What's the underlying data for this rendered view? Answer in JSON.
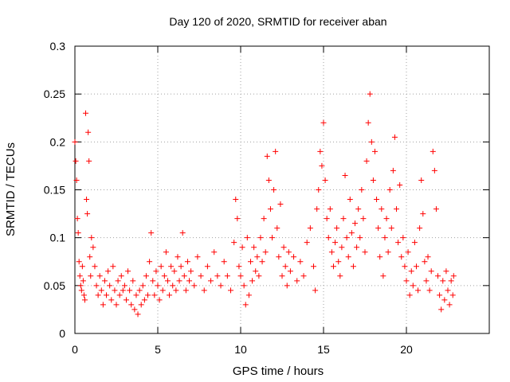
{
  "chart_data": {
    "type": "scatter",
    "title": "Day 120 of 2020, SRMTID for receiver aban",
    "xlabel": "GPS time / hours",
    "ylabel": "SRMTID / TECUs",
    "xlim": [
      0,
      25
    ],
    "ylim": [
      0,
      0.3
    ],
    "xticks": [
      0,
      5,
      10,
      15,
      20
    ],
    "xtick_labels": [
      "0",
      "5",
      "10",
      "15",
      "20"
    ],
    "yticks": [
      0,
      0.05,
      0.1,
      0.15,
      0.2,
      0.25,
      0.3
    ],
    "ytick_labels": [
      "0",
      "0.05",
      "0.1",
      "0.15",
      "0.2",
      "0.25",
      "0.3"
    ],
    "grid": true,
    "marker": "+",
    "series_color": "#ff0000",
    "series": [
      {
        "name": "SRMTID",
        "points": [
          [
            0.0,
            0.2
          ],
          [
            0.05,
            0.18
          ],
          [
            0.1,
            0.16
          ],
          [
            0.15,
            0.12
          ],
          [
            0.2,
            0.105
          ],
          [
            0.25,
            0.075
          ],
          [
            0.3,
            0.06
          ],
          [
            0.35,
            0.05
          ],
          [
            0.4,
            0.045
          ],
          [
            0.45,
            0.07
          ],
          [
            0.5,
            0.055
          ],
          [
            0.55,
            0.04
          ],
          [
            0.6,
            0.035
          ],
          [
            0.65,
            0.23
          ],
          [
            0.7,
            0.14
          ],
          [
            0.75,
            0.125
          ],
          [
            0.8,
            0.21
          ],
          [
            0.85,
            0.18
          ],
          [
            0.9,
            0.08
          ],
          [
            0.95,
            0.06
          ],
          [
            1.0,
            0.1
          ],
          [
            1.1,
            0.09
          ],
          [
            1.2,
            0.07
          ],
          [
            1.3,
            0.05
          ],
          [
            1.4,
            0.04
          ],
          [
            1.5,
            0.06
          ],
          [
            1.6,
            0.045
          ],
          [
            1.7,
            0.03
          ],
          [
            1.8,
            0.055
          ],
          [
            1.9,
            0.04
          ],
          [
            2.0,
            0.065
          ],
          [
            2.1,
            0.05
          ],
          [
            2.2,
            0.035
          ],
          [
            2.3,
            0.07
          ],
          [
            2.4,
            0.045
          ],
          [
            2.5,
            0.03
          ],
          [
            2.6,
            0.055
          ],
          [
            2.7,
            0.04
          ],
          [
            2.8,
            0.06
          ],
          [
            2.9,
            0.045
          ],
          [
            3.0,
            0.05
          ],
          [
            3.1,
            0.035
          ],
          [
            3.2,
            0.065
          ],
          [
            3.3,
            0.045
          ],
          [
            3.4,
            0.03
          ],
          [
            3.5,
            0.055
          ],
          [
            3.6,
            0.025
          ],
          [
            3.7,
            0.04
          ],
          [
            3.8,
            0.02
          ],
          [
            3.9,
            0.045
          ],
          [
            4.0,
            0.03
          ],
          [
            4.1,
            0.05
          ],
          [
            4.2,
            0.035
          ],
          [
            4.3,
            0.06
          ],
          [
            4.4,
            0.04
          ],
          [
            4.5,
            0.075
          ],
          [
            4.6,
            0.105
          ],
          [
            4.7,
            0.055
          ],
          [
            4.8,
            0.04
          ],
          [
            4.9,
            0.065
          ],
          [
            5.0,
            0.05
          ],
          [
            5.1,
            0.035
          ],
          [
            5.2,
            0.07
          ],
          [
            5.3,
            0.045
          ],
          [
            5.4,
            0.06
          ],
          [
            5.5,
            0.085
          ],
          [
            5.6,
            0.055
          ],
          [
            5.7,
            0.04
          ],
          [
            5.8,
            0.07
          ],
          [
            5.9,
            0.05
          ],
          [
            6.0,
            0.065
          ],
          [
            6.1,
            0.045
          ],
          [
            6.2,
            0.08
          ],
          [
            6.3,
            0.055
          ],
          [
            6.4,
            0.07
          ],
          [
            6.5,
            0.105
          ],
          [
            6.6,
            0.06
          ],
          [
            6.7,
            0.045
          ],
          [
            6.8,
            0.075
          ],
          [
            6.9,
            0.055
          ],
          [
            7.0,
            0.065
          ],
          [
            7.2,
            0.05
          ],
          [
            7.4,
            0.08
          ],
          [
            7.6,
            0.06
          ],
          [
            7.8,
            0.045
          ],
          [
            8.0,
            0.07
          ],
          [
            8.2,
            0.055
          ],
          [
            8.4,
            0.085
          ],
          [
            8.6,
            0.06
          ],
          [
            8.8,
            0.05
          ],
          [
            9.0,
            0.075
          ],
          [
            9.2,
            0.06
          ],
          [
            9.4,
            0.045
          ],
          [
            9.6,
            0.095
          ],
          [
            9.7,
            0.14
          ],
          [
            9.8,
            0.12
          ],
          [
            9.9,
            0.07
          ],
          [
            10.0,
            0.06
          ],
          [
            10.1,
            0.09
          ],
          [
            10.2,
            0.05
          ],
          [
            10.3,
            0.03
          ],
          [
            10.4,
            0.1
          ],
          [
            10.5,
            0.04
          ],
          [
            10.6,
            0.075
          ],
          [
            10.7,
            0.055
          ],
          [
            10.8,
            0.09
          ],
          [
            10.9,
            0.065
          ],
          [
            11.0,
            0.08
          ],
          [
            11.1,
            0.06
          ],
          [
            11.2,
            0.1
          ],
          [
            11.3,
            0.075
          ],
          [
            11.4,
            0.12
          ],
          [
            11.5,
            0.085
          ],
          [
            11.6,
            0.185
          ],
          [
            11.7,
            0.16
          ],
          [
            11.8,
            0.13
          ],
          [
            11.9,
            0.1
          ],
          [
            12.0,
            0.15
          ],
          [
            12.1,
            0.19
          ],
          [
            12.2,
            0.11
          ],
          [
            12.3,
            0.08
          ],
          [
            12.4,
            0.135
          ],
          [
            12.5,
            0.06
          ],
          [
            12.6,
            0.09
          ],
          [
            12.7,
            0.07
          ],
          [
            12.8,
            0.05
          ],
          [
            12.9,
            0.085
          ],
          [
            13.0,
            0.065
          ],
          [
            13.2,
            0.08
          ],
          [
            13.4,
            0.055
          ],
          [
            13.6,
            0.075
          ],
          [
            13.8,
            0.06
          ],
          [
            14.0,
            0.095
          ],
          [
            14.2,
            0.11
          ],
          [
            14.4,
            0.07
          ],
          [
            14.5,
            0.045
          ],
          [
            14.6,
            0.13
          ],
          [
            14.7,
            0.15
          ],
          [
            14.8,
            0.19
          ],
          [
            14.9,
            0.175
          ],
          [
            15.0,
            0.22
          ],
          [
            15.1,
            0.16
          ],
          [
            15.2,
            0.12
          ],
          [
            15.3,
            0.1
          ],
          [
            15.4,
            0.13
          ],
          [
            15.5,
            0.085
          ],
          [
            15.6,
            0.07
          ],
          [
            15.7,
            0.095
          ],
          [
            15.8,
            0.11
          ],
          [
            15.9,
            0.075
          ],
          [
            16.0,
            0.06
          ],
          [
            16.1,
            0.09
          ],
          [
            16.2,
            0.12
          ],
          [
            16.3,
            0.165
          ],
          [
            16.4,
            0.1
          ],
          [
            16.5,
            0.08
          ],
          [
            16.6,
            0.14
          ],
          [
            16.7,
            0.105
          ],
          [
            16.8,
            0.07
          ],
          [
            16.9,
            0.115
          ],
          [
            17.0,
            0.09
          ],
          [
            17.1,
            0.13
          ],
          [
            17.2,
            0.1
          ],
          [
            17.3,
            0.15
          ],
          [
            17.4,
            0.12
          ],
          [
            17.5,
            0.085
          ],
          [
            17.6,
            0.18
          ],
          [
            17.7,
            0.22
          ],
          [
            17.8,
            0.25
          ],
          [
            17.9,
            0.2
          ],
          [
            18.0,
            0.16
          ],
          [
            18.1,
            0.19
          ],
          [
            18.2,
            0.14
          ],
          [
            18.3,
            0.11
          ],
          [
            18.4,
            0.08
          ],
          [
            18.5,
            0.13
          ],
          [
            18.6,
            0.06
          ],
          [
            18.7,
            0.1
          ],
          [
            18.8,
            0.12
          ],
          [
            18.9,
            0.085
          ],
          [
            19.0,
            0.15
          ],
          [
            19.1,
            0.11
          ],
          [
            19.2,
            0.17
          ],
          [
            19.3,
            0.205
          ],
          [
            19.4,
            0.13
          ],
          [
            19.5,
            0.095
          ],
          [
            19.6,
            0.155
          ],
          [
            19.7,
            0.08
          ],
          [
            19.8,
            0.1
          ],
          [
            19.9,
            0.07
          ],
          [
            20.0,
            0.055
          ],
          [
            20.1,
            0.085
          ],
          [
            20.2,
            0.04
          ],
          [
            20.3,
            0.065
          ],
          [
            20.4,
            0.05
          ],
          [
            20.5,
            0.095
          ],
          [
            20.6,
            0.07
          ],
          [
            20.7,
            0.045
          ],
          [
            20.8,
            0.11
          ],
          [
            20.9,
            0.16
          ],
          [
            21.0,
            0.125
          ],
          [
            21.1,
            0.075
          ],
          [
            21.2,
            0.055
          ],
          [
            21.3,
            0.08
          ],
          [
            21.4,
            0.045
          ],
          [
            21.5,
            0.065
          ],
          [
            21.6,
            0.19
          ],
          [
            21.7,
            0.17
          ],
          [
            21.8,
            0.13
          ],
          [
            21.9,
            0.06
          ],
          [
            22.0,
            0.04
          ],
          [
            22.1,
            0.025
          ],
          [
            22.2,
            0.055
          ],
          [
            22.3,
            0.035
          ],
          [
            22.4,
            0.065
          ],
          [
            22.5,
            0.045
          ],
          [
            22.6,
            0.03
          ],
          [
            22.7,
            0.055
          ],
          [
            22.8,
            0.04
          ],
          [
            22.85,
            0.06
          ]
        ]
      }
    ]
  }
}
